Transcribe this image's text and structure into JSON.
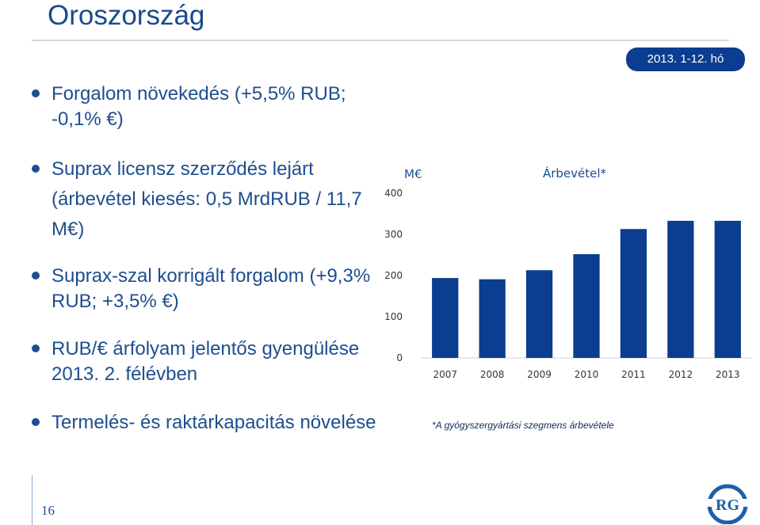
{
  "title": "Oroszország",
  "badge": "2013. 1-12. hó",
  "bullets": [
    {
      "text": "Forgalom növekedés (+5,5% RUB; -0,1% €)"
    },
    {
      "text": "Suprax licensz szerződés lejárt (árbevétel kiesés: 0,5 MrdRUB / 11,7 M€)"
    },
    {
      "text": "Suprax-szal korrigált forgalom (+9,3% RUB; +3,5% €)"
    },
    {
      "text": "RUB/€ árfolyam jelentős gyengülése 2013. 2. félévben"
    },
    {
      "text": "Termelés- és raktárkapacitás növelése"
    }
  ],
  "chart_data": {
    "type": "bar",
    "title": "Árbevétel*",
    "unit": "M€",
    "categories": [
      "2007",
      "2008",
      "2009",
      "2010",
      "2011",
      "2012",
      "2013"
    ],
    "values": [
      194,
      191,
      213,
      252,
      313,
      333,
      333
    ],
    "ylim": [
      0,
      400
    ],
    "yticks": [
      0,
      100,
      200,
      300,
      400
    ],
    "bar_color": "#0b3d91"
  },
  "footnote": "*A gyógyszergyártási szegmens árbevétele",
  "page_number": "16",
  "logo": {
    "text": "RG",
    "color": "#1f5fa8"
  }
}
